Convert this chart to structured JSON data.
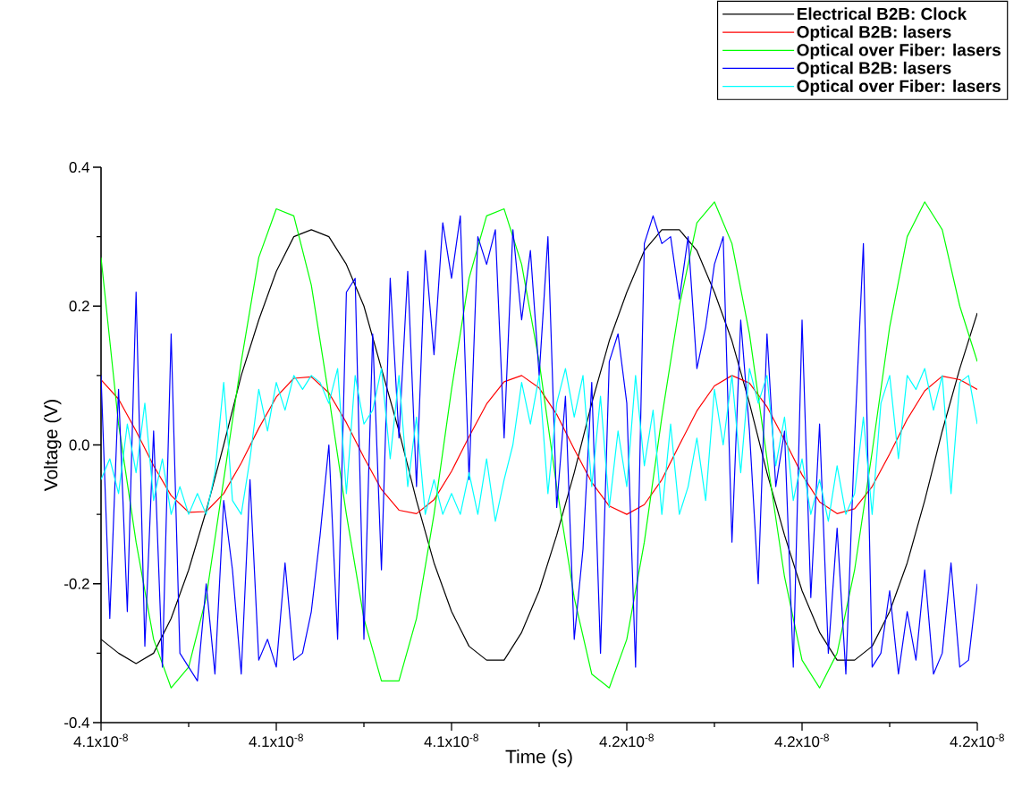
{
  "chart_data": {
    "type": "line",
    "xlabel": "Time (s)",
    "ylabel": "Voltage (V)",
    "xlim": [
      4.136e-08,
      4.161e-08
    ],
    "ylim": [
      -0.4,
      0.4
    ],
    "xticks": [
      {
        "value": 4.136e-08,
        "label": "4.1x10$^{-8}$"
      },
      {
        "value": 4.141e-08,
        "label": "4.1x10$^{-8}$"
      },
      {
        "value": 4.146e-08,
        "label": "4.1x10$^{-8}$"
      },
      {
        "value": 4.151e-08,
        "label": "4.2x10$^{-8}$"
      },
      {
        "value": 4.156e-08,
        "label": "4.2x10$^{-8}$"
      },
      {
        "value": 4.161e-08,
        "label": "4.2x10$^{-8}$"
      }
    ],
    "yticks": [
      -0.4,
      -0.2,
      {
        "value": 0,
        "label": "0.0"
      },
      0.2,
      0.4
    ],
    "legend": "top right",
    "line_style": "solid",
    "x": [
      4.136e-08,
      4.1365e-08,
      4.137e-08,
      4.1375e-08,
      4.138e-08,
      4.1385e-08,
      4.139e-08,
      4.1395e-08,
      4.14e-08,
      4.1405e-08,
      4.141e-08,
      4.1415e-08,
      4.142e-08,
      4.1425e-08,
      4.143e-08,
      4.1435e-08,
      4.144e-08,
      4.1445e-08,
      4.145e-08,
      4.1455e-08,
      4.146e-08,
      4.1465e-08,
      4.147e-08,
      4.1475e-08,
      4.148e-08,
      4.1485e-08,
      4.149e-08,
      4.1495e-08,
      4.15e-08,
      4.1505e-08,
      4.151e-08,
      4.1515e-08,
      4.152e-08,
      4.1525e-08,
      4.153e-08,
      4.1535e-08,
      4.154e-08,
      4.1545e-08,
      4.155e-08,
      4.1555e-08,
      4.156e-08,
      4.1565e-08,
      4.157e-08,
      4.1575e-08,
      4.158e-08,
      4.1585e-08,
      4.159e-08,
      4.1595e-08,
      4.16e-08,
      4.1605e-08,
      4.161e-08
    ],
    "series": [
      {
        "name": "Electrical B2B: Clock",
        "color": "#000000",
        "values": [
          -0.28,
          -0.3,
          -0.315,
          -0.3,
          -0.25,
          -0.18,
          -0.095,
          0.0,
          0.1,
          0.18,
          0.25,
          0.3,
          0.31,
          0.3,
          0.26,
          0.2,
          0.11,
          0.02,
          -0.08,
          -0.17,
          -0.24,
          -0.29,
          -0.31,
          -0.31,
          -0.27,
          -0.21,
          -0.13,
          -0.04,
          0.06,
          0.15,
          0.22,
          0.28,
          0.31,
          0.31,
          0.28,
          0.22,
          0.15,
          0.06,
          -0.04,
          -0.13,
          -0.21,
          -0.27,
          -0.31,
          -0.31,
          -0.29,
          -0.24,
          -0.17,
          -0.08,
          0.02,
          0.11,
          0.19
        ]
      },
      {
        "name": "Optical B2B: lasers",
        "color": "#ff0000",
        "values": [
          0.094,
          0.066,
          0.02,
          -0.03,
          -0.073,
          -0.097,
          -0.096,
          -0.07,
          -0.026,
          0.024,
          0.069,
          0.096,
          0.098,
          0.075,
          0.032,
          -0.018,
          -0.064,
          -0.094,
          -0.099,
          -0.079,
          -0.038,
          0.012,
          0.059,
          0.091,
          0.1,
          0.082,
          0.044,
          -0.006,
          -0.054,
          -0.088,
          -0.1,
          -0.086,
          -0.05,
          0.0,
          0.049,
          0.085,
          0.1,
          0.089,
          0.055,
          0.007,
          -0.043,
          -0.082,
          -0.099,
          -0.092,
          -0.06,
          -0.013,
          0.037,
          0.078,
          0.099,
          0.094,
          0.08
        ]
      },
      {
        "name": "Optical over Fiber: lasers",
        "color": "#00ff00",
        "values": [
          0.27,
          0.03,
          -0.14,
          -0.28,
          -0.35,
          -0.32,
          -0.22,
          -0.05,
          0.12,
          0.27,
          0.34,
          0.33,
          0.23,
          0.07,
          -0.1,
          -0.25,
          -0.34,
          -0.34,
          -0.25,
          -0.1,
          0.08,
          0.24,
          0.33,
          0.34,
          0.26,
          0.12,
          -0.06,
          -0.22,
          -0.33,
          -0.35,
          -0.28,
          -0.14,
          0.04,
          0.2,
          0.32,
          0.35,
          0.29,
          0.16,
          -0.02,
          -0.19,
          -0.31,
          -0.35,
          -0.3,
          -0.18,
          -0.01,
          0.17,
          0.3,
          0.35,
          0.31,
          0.2,
          0.12
        ]
      },
      {
        "name": "Optical B2B: lasers",
        "color": "#0000ff",
        "x": [
          4.136e-08,
          4.13625e-08,
          4.1365e-08,
          4.13675e-08,
          4.137e-08,
          4.13725e-08,
          4.1375e-08,
          4.13775e-08,
          4.138e-08,
          4.13825e-08,
          4.1385e-08,
          4.13875e-08,
          4.139e-08,
          4.13925e-08,
          4.1395e-08,
          4.13975e-08,
          4.14e-08,
          4.14025e-08,
          4.1405e-08,
          4.14075e-08,
          4.141e-08,
          4.14125e-08,
          4.1415e-08,
          4.14175e-08,
          4.142e-08,
          4.14225e-08,
          4.1425e-08,
          4.14275e-08,
          4.143e-08,
          4.14325e-08,
          4.1435e-08,
          4.14375e-08,
          4.144e-08,
          4.14425e-08,
          4.1445e-08,
          4.14475e-08,
          4.145e-08,
          4.14525e-08,
          4.1455e-08,
          4.14575e-08,
          4.146e-08,
          4.14625e-08,
          4.1465e-08,
          4.14675e-08,
          4.147e-08,
          4.14725e-08,
          4.1475e-08,
          4.14775e-08,
          4.148e-08,
          4.14825e-08,
          4.1485e-08,
          4.14875e-08,
          4.149e-08,
          4.14925e-08,
          4.1495e-08,
          4.14975e-08,
          4.15e-08,
          4.15025e-08,
          4.1505e-08,
          4.15075e-08,
          4.151e-08,
          4.15125e-08,
          4.1515e-08,
          4.15175e-08,
          4.152e-08,
          4.15225e-08,
          4.1525e-08,
          4.15275e-08,
          4.153e-08,
          4.15325e-08,
          4.1535e-08,
          4.15375e-08,
          4.154e-08,
          4.15425e-08,
          4.1545e-08,
          4.15475e-08,
          4.155e-08,
          4.15525e-08,
          4.1555e-08,
          4.15575e-08,
          4.156e-08,
          4.15625e-08,
          4.1565e-08,
          4.15675e-08,
          4.157e-08,
          4.15725e-08,
          4.1575e-08,
          4.15775e-08,
          4.158e-08,
          4.15825e-08,
          4.1585e-08,
          4.15875e-08,
          4.159e-08,
          4.15925e-08,
          4.1595e-08,
          4.15975e-08,
          4.16e-08,
          4.16025e-08,
          4.1605e-08,
          4.16075e-08,
          4.161e-08
        ],
        "values": [
          0.1,
          -0.25,
          0.08,
          -0.24,
          0.22,
          -0.29,
          0.02,
          -0.32,
          0.16,
          -0.3,
          -0.32,
          -0.34,
          -0.2,
          -0.33,
          -0.08,
          -0.18,
          -0.33,
          -0.05,
          -0.31,
          -0.28,
          -0.32,
          -0.17,
          -0.31,
          -0.3,
          -0.24,
          -0.13,
          0.0,
          -0.28,
          0.22,
          0.24,
          -0.28,
          0.16,
          -0.18,
          0.24,
          0.01,
          0.25,
          -0.06,
          0.28,
          0.13,
          0.32,
          0.24,
          0.33,
          -0.05,
          0.3,
          0.26,
          0.31,
          0.01,
          0.31,
          0.18,
          0.28,
          0.1,
          0.3,
          -0.09,
          0.07,
          -0.28,
          -0.15,
          0.09,
          -0.3,
          0.12,
          0.16,
          0.06,
          -0.32,
          0.29,
          0.33,
          0.29,
          0.3,
          0.21,
          0.3,
          0.11,
          0.17,
          0.26,
          0.3,
          -0.14,
          0.18,
          0.02,
          -0.2,
          0.16,
          -0.06,
          0.02,
          -0.32,
          0.18,
          -0.22,
          0.03,
          -0.3,
          -0.12,
          -0.33,
          0.01,
          0.29,
          -0.32,
          -0.3,
          -0.21,
          -0.33,
          -0.24,
          -0.31,
          -0.18,
          -0.33,
          -0.3,
          -0.17,
          -0.32,
          -0.31,
          -0.2
        ]
      },
      {
        "name": "Optical over Fiber: lasers",
        "color": "#00ffff",
        "x": [
          4.136e-08,
          4.13625e-08,
          4.1365e-08,
          4.13675e-08,
          4.137e-08,
          4.13725e-08,
          4.1375e-08,
          4.13775e-08,
          4.138e-08,
          4.13825e-08,
          4.1385e-08,
          4.13875e-08,
          4.139e-08,
          4.13925e-08,
          4.1395e-08,
          4.13975e-08,
          4.14e-08,
          4.14025e-08,
          4.1405e-08,
          4.14075e-08,
          4.141e-08,
          4.14125e-08,
          4.1415e-08,
          4.14175e-08,
          4.142e-08,
          4.14225e-08,
          4.1425e-08,
          4.14275e-08,
          4.143e-08,
          4.14325e-08,
          4.1435e-08,
          4.14375e-08,
          4.144e-08,
          4.14425e-08,
          4.1445e-08,
          4.14475e-08,
          4.145e-08,
          4.14525e-08,
          4.1455e-08,
          4.14575e-08,
          4.146e-08,
          4.14625e-08,
          4.1465e-08,
          4.14675e-08,
          4.147e-08,
          4.14725e-08,
          4.1475e-08,
          4.14775e-08,
          4.148e-08,
          4.14825e-08,
          4.1485e-08,
          4.14875e-08,
          4.149e-08,
          4.14925e-08,
          4.1495e-08,
          4.14975e-08,
          4.15e-08,
          4.15025e-08,
          4.1505e-08,
          4.15075e-08,
          4.151e-08,
          4.15125e-08,
          4.1515e-08,
          4.15175e-08,
          4.152e-08,
          4.15225e-08,
          4.1525e-08,
          4.15275e-08,
          4.153e-08,
          4.15325e-08,
          4.1535e-08,
          4.15375e-08,
          4.154e-08,
          4.15425e-08,
          4.1545e-08,
          4.15475e-08,
          4.155e-08,
          4.15525e-08,
          4.1555e-08,
          4.15575e-08,
          4.156e-08,
          4.15625e-08,
          4.1565e-08,
          4.15675e-08,
          4.157e-08,
          4.15725e-08,
          4.1575e-08,
          4.15775e-08,
          4.158e-08,
          4.15825e-08,
          4.1585e-08,
          4.15875e-08,
          4.159e-08,
          4.15925e-08,
          4.1595e-08,
          4.15975e-08,
          4.16e-08,
          4.16025e-08,
          4.1605e-08,
          4.16075e-08,
          4.161e-08
        ],
        "values": [
          -0.05,
          -0.02,
          -0.07,
          0.03,
          -0.04,
          0.06,
          -0.08,
          -0.02,
          -0.1,
          -0.06,
          -0.1,
          -0.07,
          -0.1,
          -0.04,
          0.09,
          -0.08,
          -0.1,
          -0.02,
          0.08,
          0.02,
          0.09,
          0.05,
          0.1,
          0.08,
          0.1,
          0.09,
          0.06,
          0.11,
          -0.07,
          0.1,
          0.03,
          0.05,
          0.11,
          -0.02,
          0.1,
          -0.06,
          0.04,
          -0.1,
          -0.05,
          -0.1,
          -0.07,
          -0.1,
          -0.04,
          -0.1,
          -0.02,
          -0.11,
          -0.05,
          0.0,
          0.09,
          0.03,
          0.1,
          -0.07,
          0.06,
          0.11,
          0.04,
          0.1,
          -0.06,
          0.07,
          -0.09,
          0.02,
          -0.06,
          0.1,
          -0.03,
          0.05,
          -0.1,
          0.03,
          -0.1,
          -0.06,
          0.01,
          -0.08,
          0.08,
          0.0,
          0.1,
          -0.04,
          0.11,
          0.06,
          0.1,
          -0.03,
          0.04,
          -0.08,
          -0.02,
          -0.1,
          -0.05,
          -0.11,
          -0.03,
          -0.1,
          -0.07,
          0.04,
          -0.1,
          0.06,
          0.1,
          -0.02,
          0.1,
          0.08,
          0.11,
          0.05,
          0.1,
          -0.07,
          0.09,
          0.1,
          0.03
        ]
      }
    ]
  }
}
